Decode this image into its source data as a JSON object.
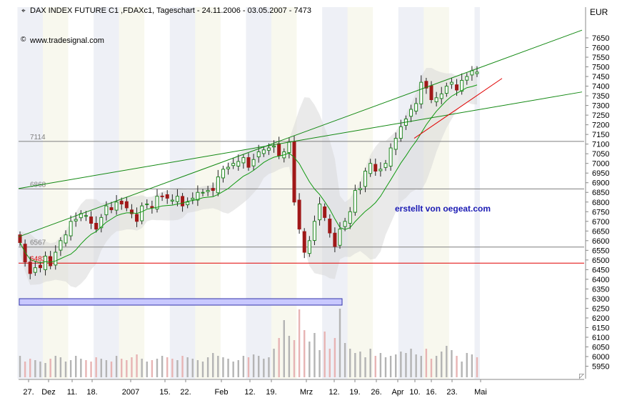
{
  "chart_data": {
    "type": "candlestick",
    "title": "DAX INDEX FUTURE C1 ,FDAXc1, Tageschart - 24.11.2006 - 03.05.2007 - 7473",
    "source": "www.tradesignal.com",
    "currency": "EUR",
    "annotation": "erstellt von oegeat.com",
    "ylim": [
      5900,
      7750
    ],
    "y_ticks": [
      5950,
      6000,
      6050,
      6100,
      6150,
      6200,
      6250,
      6300,
      6350,
      6400,
      6450,
      6500,
      6550,
      6600,
      6650,
      6700,
      6750,
      6800,
      6850,
      6900,
      6950,
      7000,
      7050,
      7100,
      7150,
      7200,
      7250,
      7300,
      7350,
      7400,
      7450,
      7500,
      7550,
      7600,
      7650
    ],
    "x_ticks": [
      "27.",
      "Dez",
      "11.",
      "18.",
      "2007",
      "15.",
      "22.",
      "Feb",
      "12.",
      "19.",
      "Mrz",
      "12.",
      "19.",
      "26.",
      "Apr",
      "10.",
      "16.",
      "23.",
      "Mai"
    ],
    "horizontal_levels": [
      {
        "value": 7114,
        "label": "7114",
        "color": "#7f7f7f"
      },
      {
        "value": 6868,
        "label": "6868",
        "color": "#7f7f7f"
      },
      {
        "value": 6567,
        "label": "6567",
        "color": "#7f7f7f"
      },
      {
        "value": 6483.5,
        "label": "6483.5",
        "color": "#e00000"
      }
    ],
    "close": [
      6590,
      6490,
      6430,
      6460,
      6460,
      6520,
      6470,
      6540,
      6600,
      6630,
      6700,
      6710,
      6740,
      6730,
      6690,
      6660,
      6720,
      6780,
      6760,
      6800,
      6790,
      6770,
      6740,
      6700,
      6780,
      6790,
      6770,
      6830,
      6830,
      6820,
      6810,
      6830,
      6780,
      6800,
      6820,
      6850,
      6850,
      6860,
      6860,
      6930,
      6970,
      6980,
      7000,
      7010,
      7030,
      6980,
      7020,
      7060,
      7070,
      7080,
      7090,
      7040,
      7060,
      7110,
      6800,
      6660,
      6540,
      6600,
      6700,
      6790,
      6720,
      6640,
      6570,
      6660,
      6700,
      6750,
      6860,
      6870,
      6960,
      7000,
      6960,
      6970,
      7000,
      7080,
      7130,
      7190,
      7230,
      7280,
      7310,
      7420,
      7390,
      7330,
      7340,
      7360,
      7400,
      7420,
      7380,
      7430,
      7450,
      7480,
      7473
    ],
    "volume": [
      30,
      22,
      26,
      24,
      22,
      20,
      26,
      30,
      28,
      22,
      24,
      30,
      26,
      24,
      22,
      28,
      26,
      24,
      22,
      30,
      26,
      24,
      28,
      32,
      26,
      22,
      24,
      26,
      30,
      28,
      26,
      24,
      30,
      28,
      26,
      24,
      22,
      28,
      34,
      30,
      28,
      26,
      22,
      24,
      30,
      28,
      32,
      30,
      26,
      28,
      40,
      55,
      80,
      58,
      52,
      95,
      66,
      50,
      62,
      38,
      64,
      40,
      55,
      96,
      48,
      40,
      34,
      36,
      28,
      40,
      30,
      34,
      28,
      30,
      32,
      36,
      34,
      40,
      32,
      30,
      40,
      26,
      30,
      36,
      44,
      38,
      30,
      22,
      34,
      32,
      28
    ]
  }
}
